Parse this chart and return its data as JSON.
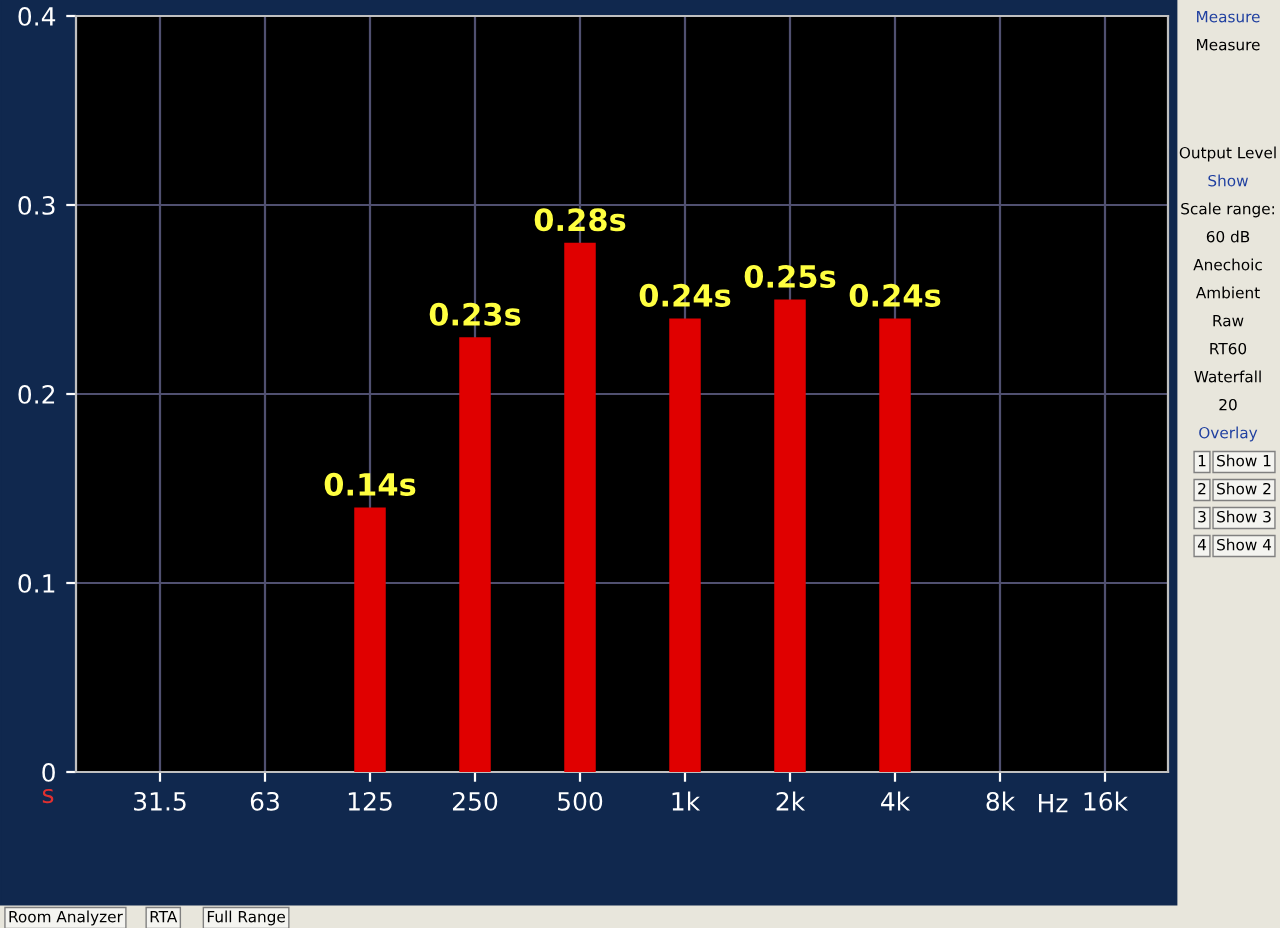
{
  "chart_data": {
    "type": "bar",
    "categories": [
      "31.5",
      "63",
      "125",
      "250",
      "500",
      "1k",
      "2k",
      "4k",
      "8k",
      "16k"
    ],
    "values": [
      null,
      null,
      0.14,
      0.23,
      0.28,
      0.24,
      0.25,
      0.24,
      null,
      null
    ],
    "value_labels": [
      null,
      null,
      "0.14s",
      "0.23s",
      "0.28s",
      "0.24s",
      "0.25s",
      "0.24s",
      null,
      null
    ],
    "color": "#e00000",
    "xlabel": "Hz",
    "ylabel": "s",
    "ylim": [
      0,
      0.4
    ],
    "yticks": [
      0,
      0.1,
      0.2,
      0.3,
      0.4
    ],
    "grid": true,
    "annotations": [
      "Measure",
      "Measure",
      "Output Level",
      "Show",
      "Scale range:",
      "60 dB",
      "Anechoic",
      "Ambient",
      "Raw",
      "RT60",
      "Waterfall",
      "20",
      "Overlay",
      "1",
      "Show 1",
      "2",
      "Show 2",
      "3",
      "Show 3",
      "4",
      "Show 4",
      "Room Analyzer",
      "RTA",
      "Full Range"
    ]
  }
}
